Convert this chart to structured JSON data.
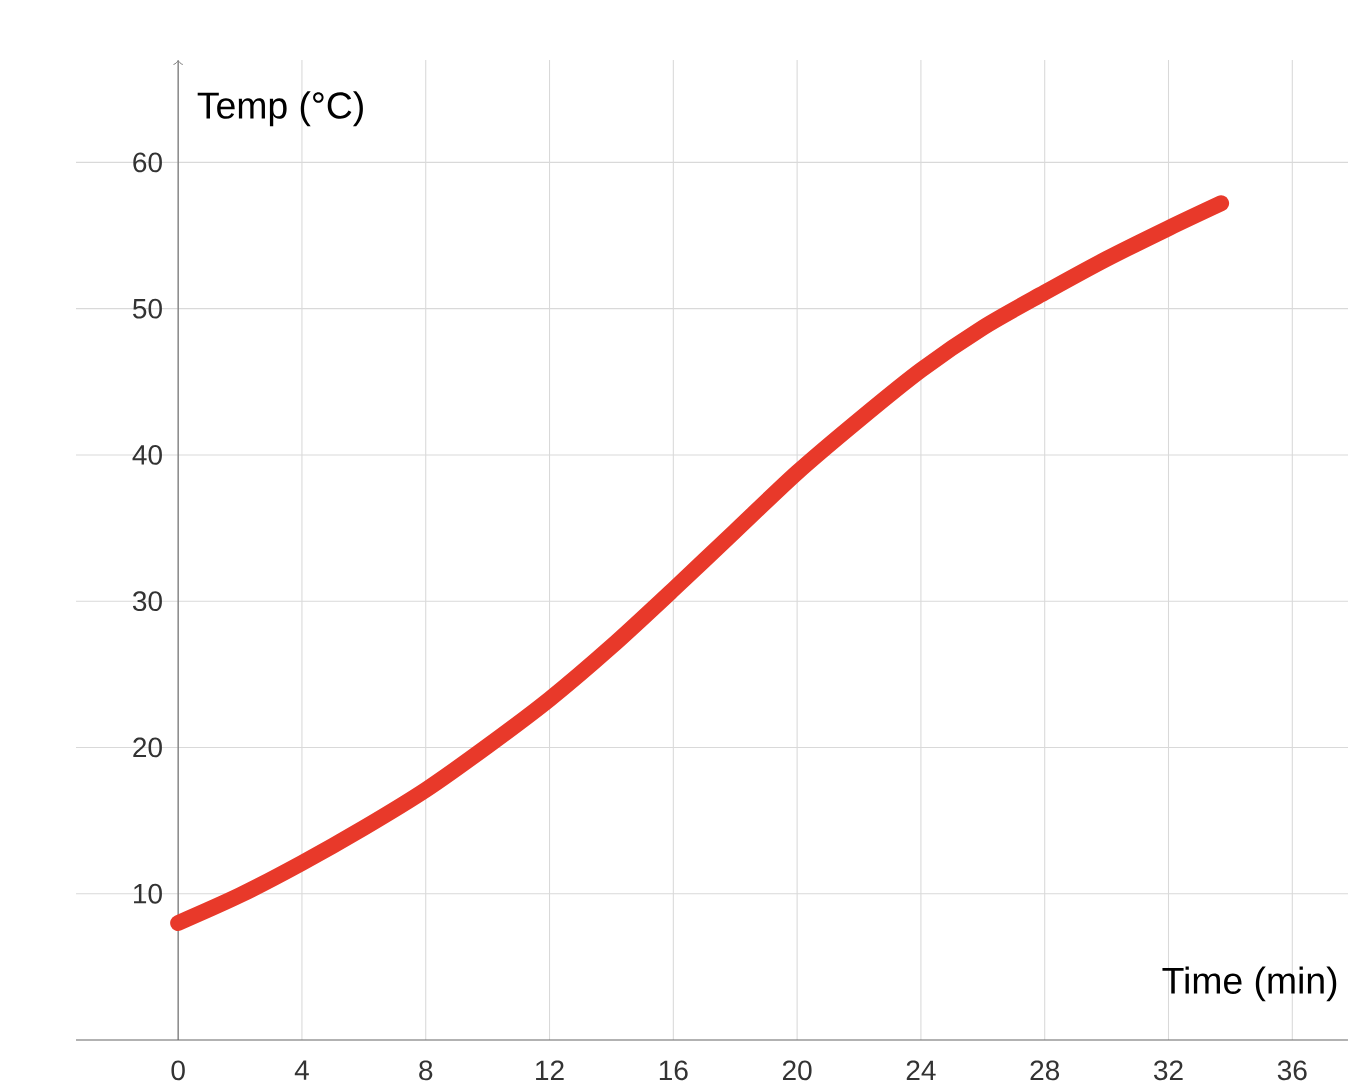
{
  "chart_data": {
    "type": "line",
    "xlabel": "Time (min)",
    "ylabel": "Temp (°C)",
    "x": [
      0,
      2,
      4,
      6,
      8,
      10,
      12,
      14,
      16,
      18,
      20,
      22,
      24,
      26,
      28,
      30,
      32,
      33.7
    ],
    "series": [
      {
        "color": "#e8392a",
        "values": [
          8,
          9.9,
          12.1,
          14.5,
          17.1,
          20.1,
          23.3,
          26.9,
          30.8,
          34.8,
          38.8,
          42.4,
          45.8,
          48.7,
          51.1,
          53.4,
          55.5,
          57.2
        ]
      }
    ],
    "xlim": [
      -3.3,
      37.8
    ],
    "ylim": [
      0,
      67
    ],
    "xticks": [
      0,
      4,
      8,
      12,
      16,
      20,
      24,
      28,
      32,
      36
    ],
    "yticks": [
      10,
      20,
      30,
      40,
      50,
      60
    ],
    "grid": true,
    "marker": "none",
    "line_style": "solid"
  }
}
